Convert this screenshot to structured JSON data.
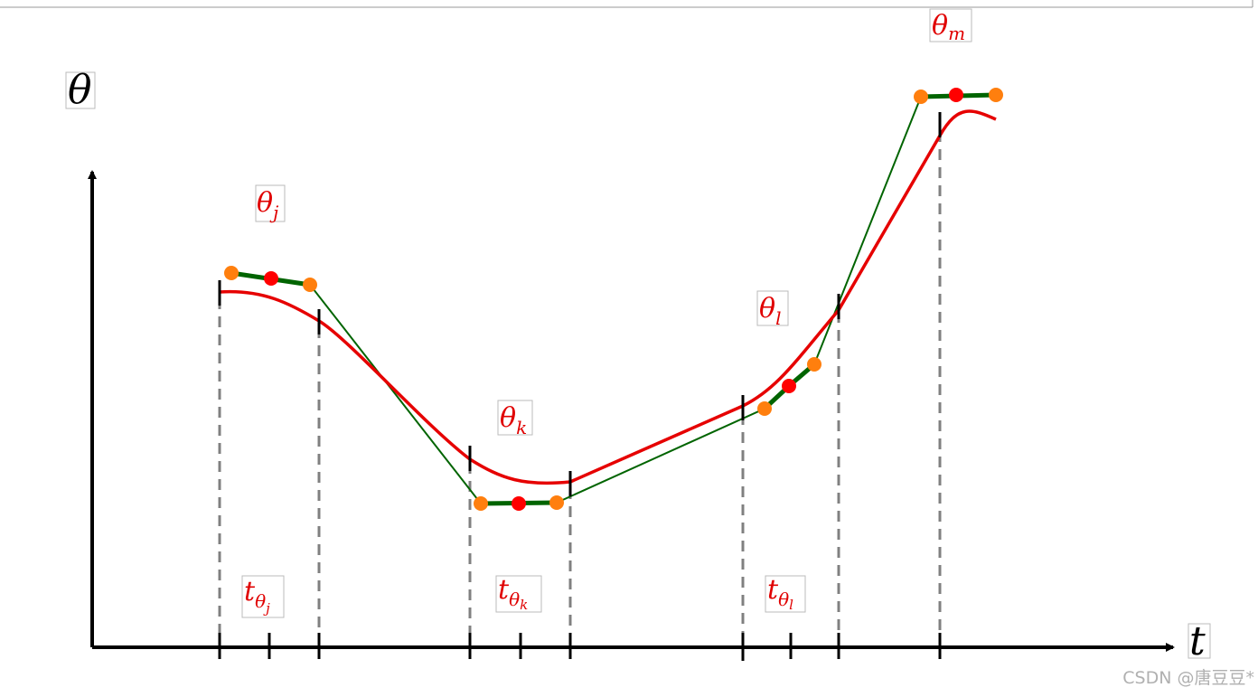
{
  "axes": {
    "y_label": "θ",
    "x_label": "t"
  },
  "points": [
    {
      "base": "θ",
      "sub": "j"
    },
    {
      "base": "θ",
      "sub": "k"
    },
    {
      "base": "θ",
      "sub": "l"
    },
    {
      "base": "θ",
      "sub": "m"
    }
  ],
  "intervals": [
    {
      "base": "t",
      "sub": "θ",
      "subsub": "j"
    },
    {
      "base": "t",
      "sub": "θ",
      "subsub": "k"
    },
    {
      "base": "t",
      "sub": "θ",
      "subsub": "l"
    }
  ],
  "watermark": "CSDN @唐豆豆*"
}
